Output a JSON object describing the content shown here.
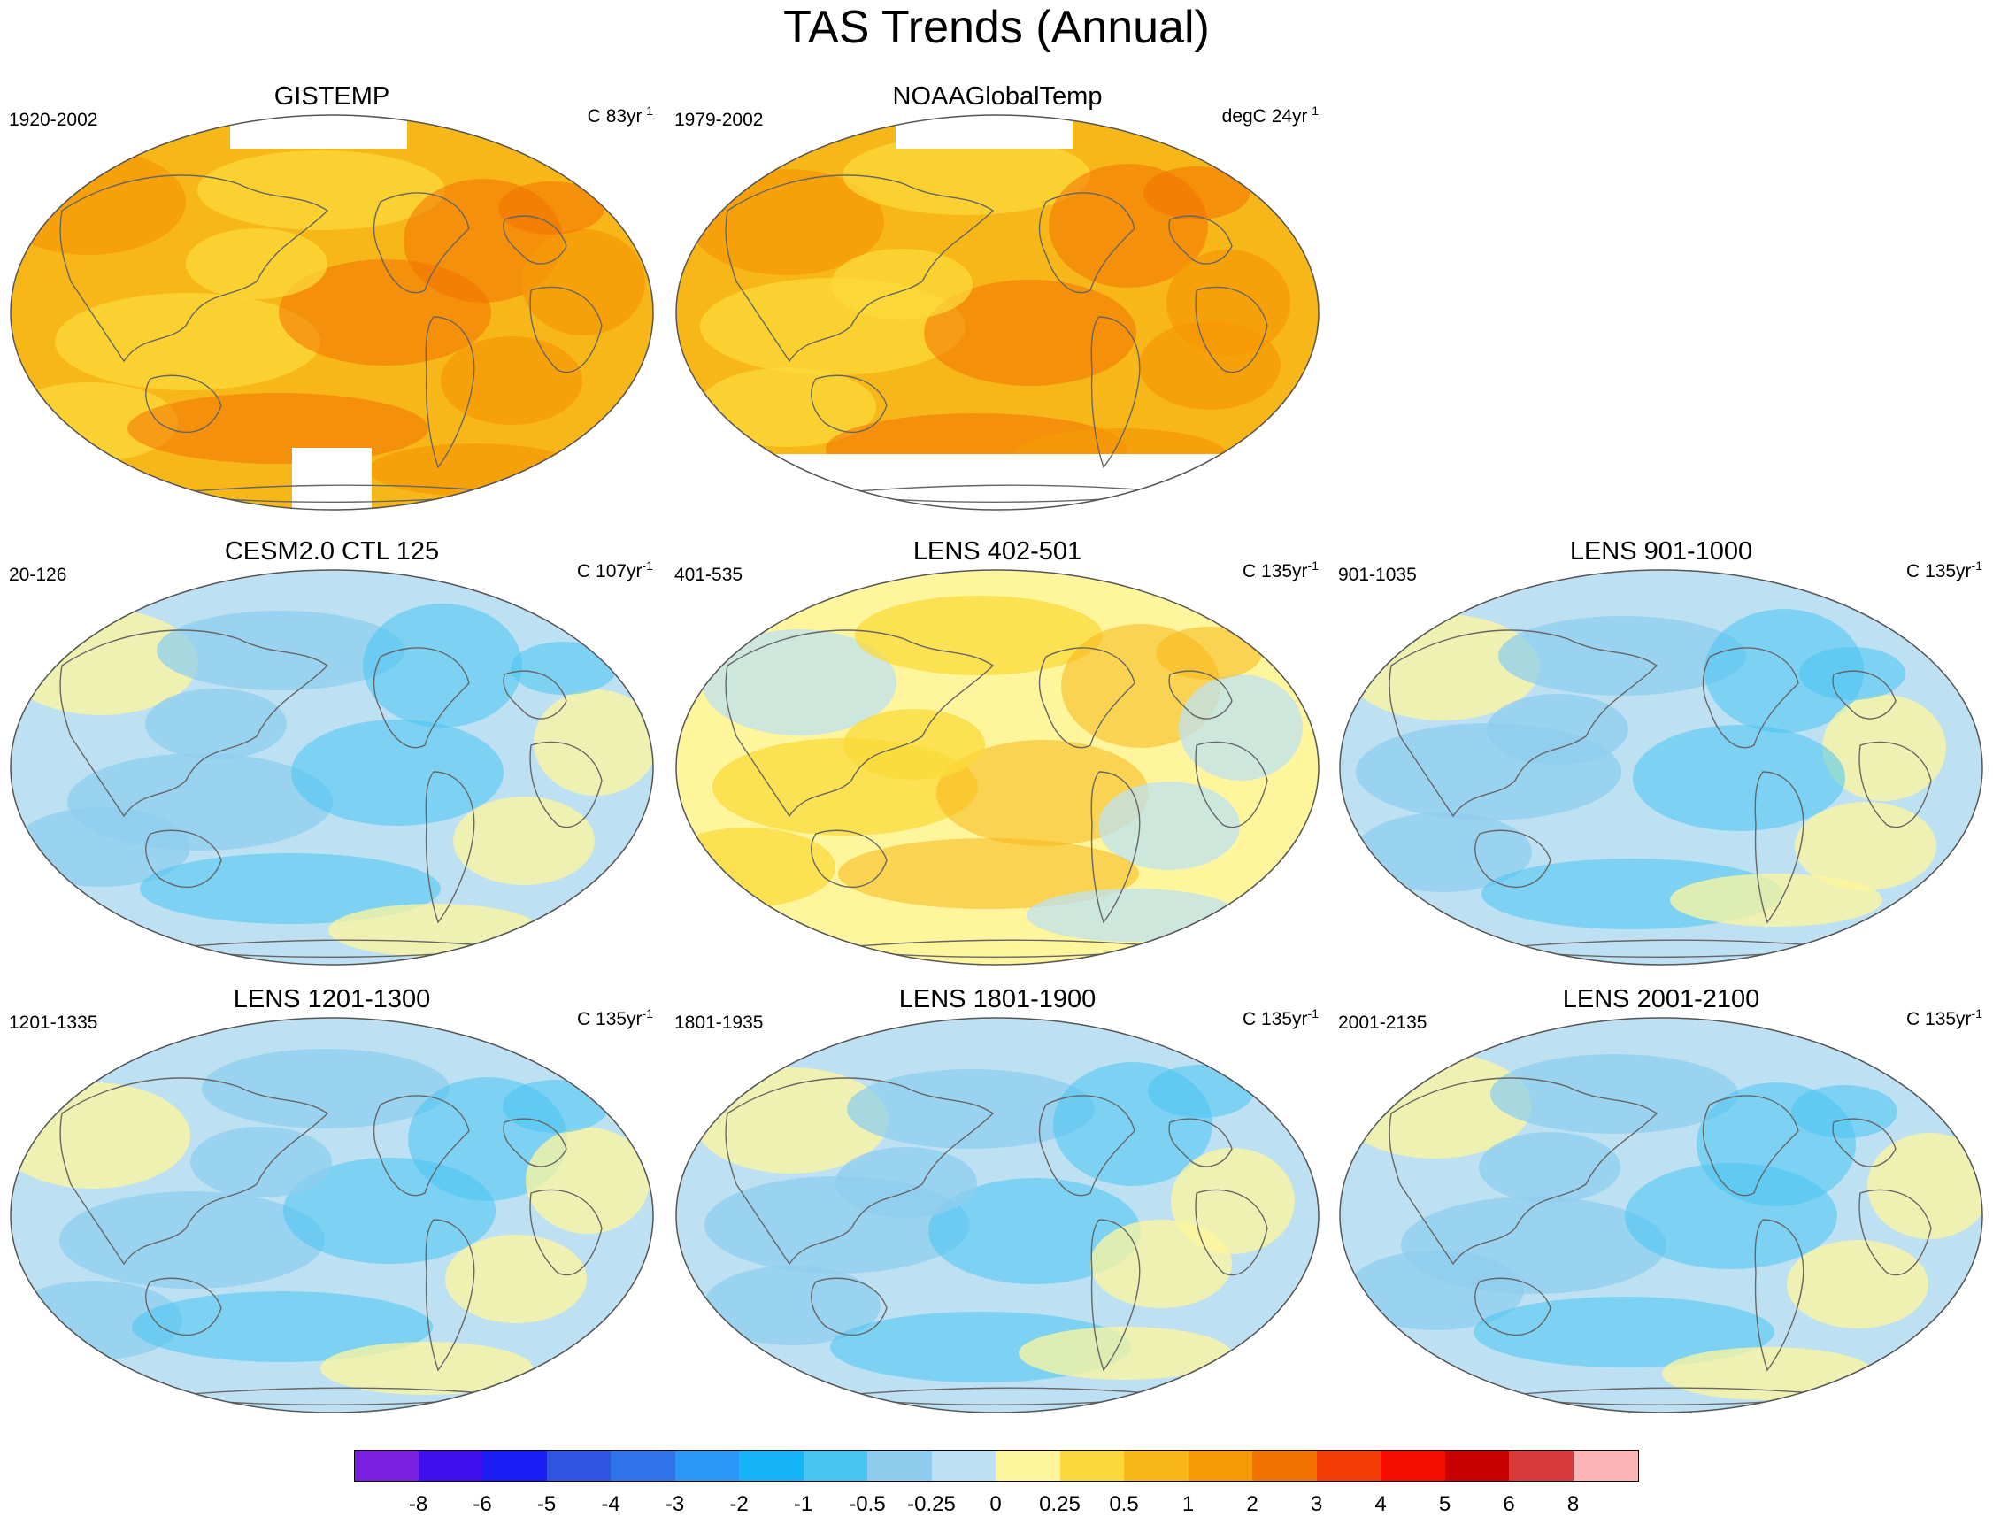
{
  "title": "TAS Trends (Annual)",
  "colors": {
    "land_outline": "#666666",
    "missing": "#ffffff"
  },
  "panels": [
    {
      "title": "GISTEMP",
      "period": "1920-2002",
      "units": "C",
      "length": "83yr",
      "sup": "-1",
      "dominant": "orange",
      "missing_data": "polar_caps"
    },
    {
      "title": "NOAAGlobalTemp",
      "period": "1979-2002",
      "units": "degC",
      "length": "24yr",
      "sup": "-1",
      "dominant": "orange",
      "missing_data": "polar_caps"
    },
    {
      "title": "CESM2.0 CTL 125",
      "period": "20-126",
      "units": "C",
      "length": "107yr",
      "sup": "-1",
      "dominant": "lightblue"
    },
    {
      "title": "LENS 402-501",
      "period": "401-535",
      "units": "C",
      "length": "135yr",
      "sup": "-1",
      "dominant": "lightyellow"
    },
    {
      "title": "LENS 901-1000",
      "period": "901-1035",
      "units": "C",
      "length": "135yr",
      "sup": "-1",
      "dominant": "lightblue"
    },
    {
      "title": "LENS 1201-1300",
      "period": "1201-1335",
      "units": "C",
      "length": "135yr",
      "sup": "-1",
      "dominant": "lightblue"
    },
    {
      "title": "LENS 1801-1900",
      "period": "1801-1935",
      "units": "C",
      "length": "135yr",
      "sup": "-1",
      "dominant": "lightblue"
    },
    {
      "title": "LENS 2001-2100",
      "period": "2001-2135",
      "units": "C",
      "length": "135yr",
      "sup": "-1",
      "dominant": "lightblue"
    }
  ],
  "colorbar": {
    "colors": [
      "#7b1fe0",
      "#3f0ff0",
      "#1a1ef5",
      "#2f55e0",
      "#2f74ea",
      "#2a96f5",
      "#14b4f6",
      "#48c4f2",
      "#8fcdee",
      "#bde1f2",
      "#fff59c",
      "#fbd93a",
      "#f7b718",
      "#f59a05",
      "#f37100",
      "#f43d06",
      "#f50d00",
      "#c80000",
      "#d83a3a",
      "#fcb5b5"
    ],
    "labels": [
      "-8",
      "-6",
      "-5",
      "-4",
      "-3",
      "-2",
      "-1",
      "-0.5",
      "-0.25",
      "0",
      "0.25",
      "0.5",
      "1",
      "2",
      "3",
      "4",
      "5",
      "6",
      "8"
    ]
  }
}
